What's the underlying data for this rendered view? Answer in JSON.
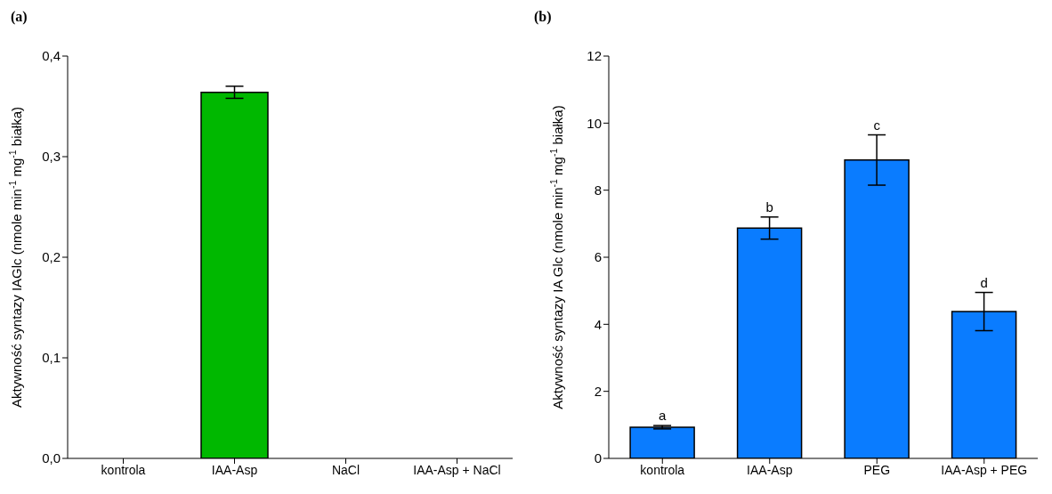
{
  "chart_data": [
    {
      "type": "bar",
      "title": "(a)",
      "ylabel": "Aktywność syntazy IAGlc (nmole min$^{-1}$ mg$^{-1}$ białka)",
      "categories": [
        "kontrola",
        "IAA-Asp",
        "NaCl",
        "IAA-Asp + NaCl"
      ],
      "values": [
        null,
        0.364,
        null,
        null
      ],
      "errors": [
        null,
        0.006,
        null,
        null
      ],
      "color": "#00b800",
      "ylim": [
        0,
        0.4
      ],
      "yticks": [
        {
          "value": 0,
          "label": "0,0"
        },
        {
          "value": 0.1,
          "label": "0,1"
        },
        {
          "value": 0.2,
          "label": "0,2"
        },
        {
          "value": 0.3,
          "label": "0,3"
        },
        {
          "value": 0.4,
          "label": "0,4"
        }
      ],
      "grid": false,
      "legend": false
    },
    {
      "type": "bar",
      "title": "(b)",
      "ylabel": "Aktywność syntazy IA Glc (nmole min$^{-1}$ mg$^{-1}$ białka)",
      "categories": [
        "kontrola",
        "IAA-Asp",
        "PEG",
        "IAA-Asp + PEG"
      ],
      "values": [
        0.93,
        6.87,
        8.9,
        4.38
      ],
      "errors": [
        0.05,
        0.33,
        0.75,
        0.57
      ],
      "color": "#0a7cff",
      "ylim": [
        0,
        12
      ],
      "yticks": [
        0,
        2,
        4,
        6,
        8,
        10,
        12
      ],
      "grid": false,
      "legend": false,
      "annotations": [
        "a",
        "b",
        "c",
        "d"
      ]
    }
  ]
}
